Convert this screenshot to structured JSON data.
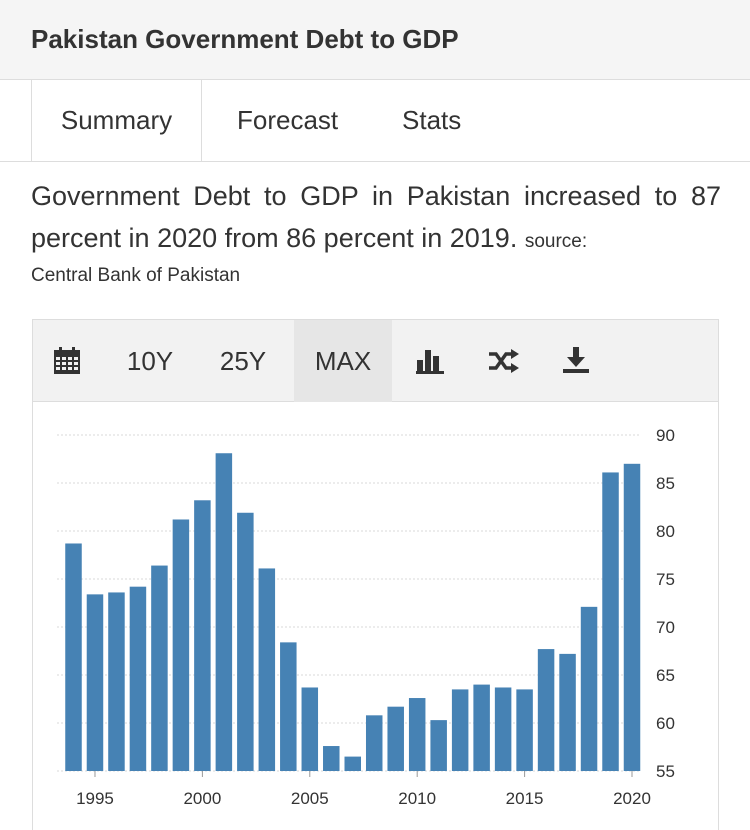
{
  "header": {
    "title": "Pakistan Government Debt to GDP"
  },
  "tabs": [
    {
      "label": "Summary",
      "active": true
    },
    {
      "label": "Forecast",
      "active": false
    },
    {
      "label": "Stats",
      "active": false
    }
  ],
  "description": {
    "text": "Government Debt to GDP in Pakistan increased to 87 percent in 2020 from 86 percent in 2019.",
    "source_label": "source:",
    "source_name": "Central Bank of Pakistan"
  },
  "toolbar": {
    "calendar_icon": "calendar-icon",
    "range_10y": "10Y",
    "range_25y": "25Y",
    "range_max": "MAX",
    "selected_range": "MAX",
    "bar_chart_icon": "bar-chart-icon",
    "shuffle_icon": "shuffle-icon",
    "download_icon": "download-icon"
  },
  "colors": {
    "bar": "#4682b4",
    "grid": "#d9d9d9",
    "axis_text": "#333333"
  },
  "chart_data": {
    "type": "bar",
    "x": [
      1994,
      1995,
      1996,
      1997,
      1998,
      1999,
      2000,
      2001,
      2002,
      2003,
      2004,
      2005,
      2006,
      2007,
      2008,
      2009,
      2010,
      2011,
      2012,
      2013,
      2014,
      2015,
      2016,
      2017,
      2018,
      2019,
      2020
    ],
    "values": [
      78.7,
      73.4,
      73.6,
      74.2,
      76.4,
      81.2,
      83.2,
      88.1,
      81.9,
      76.1,
      68.4,
      63.7,
      57.6,
      56.5,
      60.8,
      61.7,
      62.6,
      60.3,
      63.5,
      64.0,
      63.7,
      63.5,
      67.7,
      67.2,
      72.1,
      86.1,
      87.0
    ],
    "x_ticks": [
      "1995",
      "2000",
      "2005",
      "2010",
      "2015",
      "2020"
    ],
    "y_ticks": [
      "55",
      "60",
      "65",
      "70",
      "75",
      "80",
      "85",
      "90"
    ],
    "ylim": [
      55,
      90
    ],
    "y_axis_side": "right",
    "grid": true,
    "legend": "none"
  }
}
